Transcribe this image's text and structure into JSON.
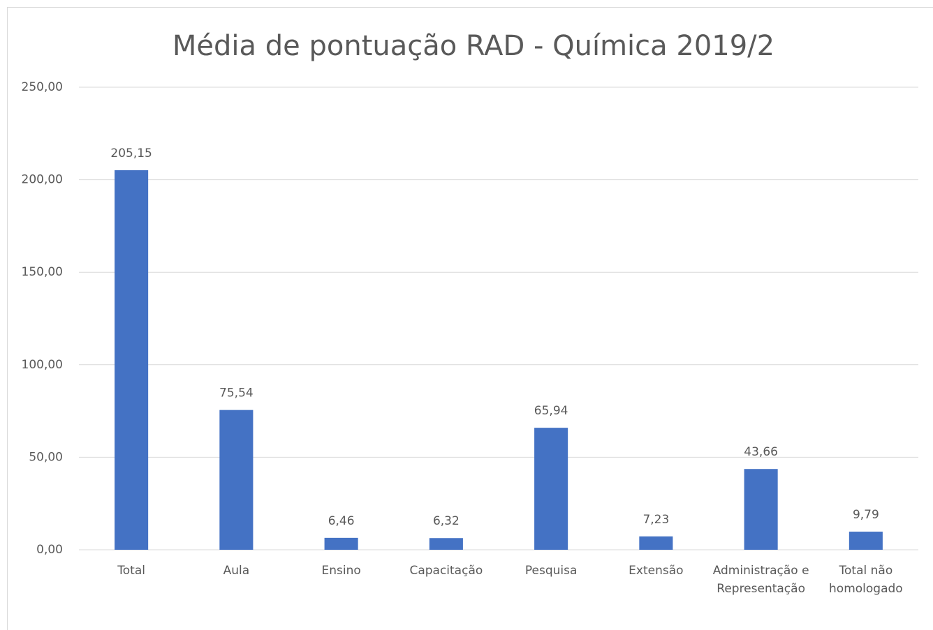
{
  "chart_data": {
    "type": "bar",
    "title": "Média de pontuação RAD - Química 2019/2",
    "categories": [
      "Total",
      "Aula",
      "Ensino",
      "Capacitação",
      "Pesquisa",
      "Extensão",
      "Administração e Representação",
      "Total não homologado"
    ],
    "values": [
      205.15,
      75.54,
      6.46,
      6.32,
      65.94,
      7.23,
      43.66,
      9.79
    ],
    "value_labels": [
      "205,15",
      "75,54",
      "6,46",
      "6,32",
      "65,94",
      "7,23",
      "43,66",
      "9,79"
    ],
    "color": "#4472c4",
    "ylim": [
      0,
      250
    ],
    "yticks": [
      {
        "value": 0,
        "label": "0,00"
      },
      {
        "value": 50,
        "label": "50,00"
      },
      {
        "value": 100,
        "label": "100,00"
      },
      {
        "value": 150,
        "label": "150,00"
      },
      {
        "value": 200,
        "label": "200,00"
      },
      {
        "value": 250,
        "label": "250,00"
      }
    ],
    "grid": true
  }
}
